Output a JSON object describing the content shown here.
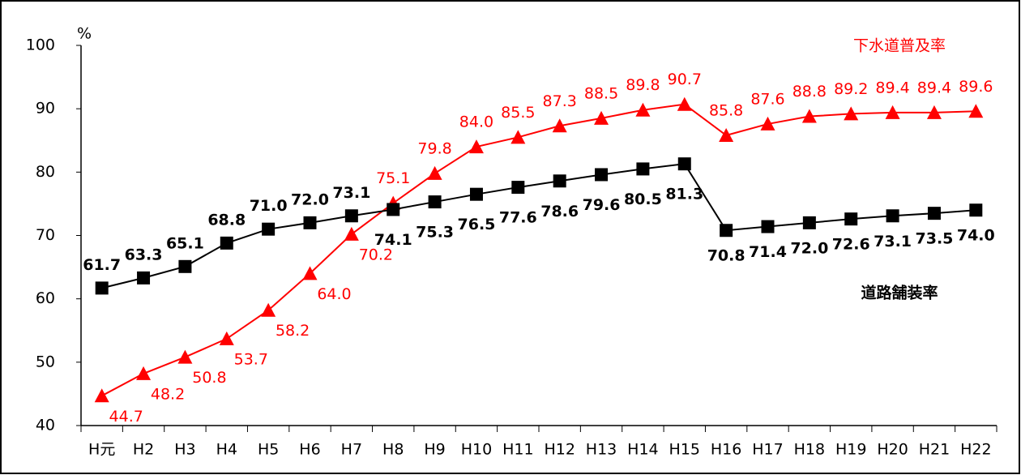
{
  "chart_data": {
    "type": "line",
    "y_unit": "%",
    "categories": [
      "H元",
      "H2",
      "H3",
      "H4",
      "H5",
      "H6",
      "H7",
      "H8",
      "H9",
      "H10",
      "H11",
      "H12",
      "H13",
      "H14",
      "H15",
      "H16",
      "H17",
      "H18",
      "H19",
      "H20",
      "H21",
      "H22"
    ],
    "series": [
      {
        "name": "下水道普及率",
        "color": "#ff0000",
        "marker": "triangle",
        "values": [
          44.7,
          48.2,
          50.8,
          53.7,
          58.2,
          64.0,
          70.2,
          75.1,
          79.8,
          84.0,
          85.5,
          87.3,
          88.5,
          89.8,
          90.7,
          85.8,
          87.6,
          88.8,
          89.2,
          89.4,
          89.4,
          89.6
        ],
        "value_labels": [
          "44.7",
          "48.2",
          "50.8",
          "53.7",
          "58.2",
          "64.0",
          "70.2",
          "75.1",
          "79.8",
          "84.0",
          "85.5",
          "87.3",
          "88.5",
          "89.8",
          "90.7",
          "85.8",
          "87.6",
          "88.8",
          "89.2",
          "89.4",
          "89.4",
          "89.6"
        ]
      },
      {
        "name": "道路舗装率",
        "color": "#000000",
        "marker": "square",
        "values": [
          61.7,
          63.3,
          65.1,
          68.8,
          71.0,
          72.0,
          73.1,
          74.1,
          75.3,
          76.5,
          77.6,
          78.6,
          79.6,
          80.5,
          81.3,
          70.8,
          71.4,
          72.0,
          72.6,
          73.1,
          73.5,
          74.0
        ],
        "value_labels": [
          "61.7",
          "63.3",
          "65.1",
          "68.8",
          "71.0",
          "72.0",
          "73.1",
          "74.1",
          "75.3",
          "76.5",
          "77.6",
          "78.6",
          "79.6",
          "80.5",
          "81.3",
          "70.8",
          "71.4",
          "72.0",
          "72.6",
          "73.1",
          "73.5",
          "74.0"
        ]
      }
    ],
    "ylim": [
      40,
      100
    ],
    "yticks": [
      40,
      50,
      60,
      70,
      80,
      90,
      100
    ],
    "grid": false
  }
}
